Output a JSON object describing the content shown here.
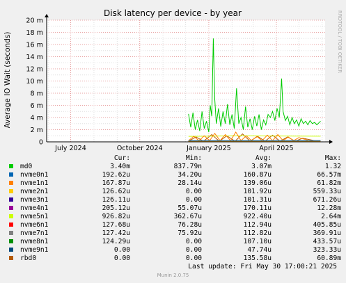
{
  "chart_data": {
    "type": "line",
    "title": "Disk latency per device - by year",
    "ylabel": "Average IO Wait (seconds)",
    "watermark": "RRDTOOL / TOBI OETIKER",
    "ylim": [
      0,
      0.02
    ],
    "yticks": [
      {
        "v": 0,
        "label": "0"
      },
      {
        "v": 0.002,
        "label": "2 m"
      },
      {
        "v": 0.004,
        "label": "4 m"
      },
      {
        "v": 0.006,
        "label": "6 m"
      },
      {
        "v": 0.008,
        "label": "8 m"
      },
      {
        "v": 0.01,
        "label": "10 m"
      },
      {
        "v": 0.012,
        "label": "12 m"
      },
      {
        "v": 0.014,
        "label": "14 m"
      },
      {
        "v": 0.016,
        "label": "16 m"
      },
      {
        "v": 0.018,
        "label": "18 m"
      },
      {
        "v": 0.02,
        "label": "20 m"
      }
    ],
    "xrange": [
      "2024-05-30",
      "2025-06-05"
    ],
    "xticks": [
      {
        "date": "2024-07-01",
        "label": "July 2024"
      },
      {
        "date": "2024-10-01",
        "label": "October 2024"
      },
      {
        "date": "2025-01-01",
        "label": "January 2025"
      },
      {
        "date": "2025-04-01",
        "label": "April 2025"
      }
    ],
    "data_start": "2024-12-05",
    "grid": true,
    "series": [
      {
        "name": "md0",
        "color": "#00cc00",
        "cur": "3.40m",
        "min": "837.79n",
        "avg": "3.07m",
        "max": "1.32",
        "values": [
          [
            "2024-12-05",
            0.0046
          ],
          [
            "2024-12-08",
            0.0024
          ],
          [
            "2024-12-11",
            0.0048
          ],
          [
            "2024-12-14",
            0.002
          ],
          [
            "2024-12-17",
            0.0036
          ],
          [
            "2024-12-20",
            0.0018
          ],
          [
            "2024-12-23",
            0.005
          ],
          [
            "2024-12-26",
            0.0022
          ],
          [
            "2024-12-29",
            0.0034
          ],
          [
            "2025-01-01",
            0.0016
          ],
          [
            "2025-01-03",
            0.006
          ],
          [
            "2025-01-05",
            0.0042
          ],
          [
            "2025-01-07",
            0.017
          ],
          [
            "2025-01-09",
            0.007
          ],
          [
            "2025-01-11",
            0.003
          ],
          [
            "2025-01-14",
            0.0055
          ],
          [
            "2025-01-17",
            0.0025
          ],
          [
            "2025-01-20",
            0.005
          ],
          [
            "2025-01-23",
            0.003
          ],
          [
            "2025-01-26",
            0.0062
          ],
          [
            "2025-01-29",
            0.0028
          ],
          [
            "2025-02-01",
            0.0045
          ],
          [
            "2025-02-04",
            0.0022
          ],
          [
            "2025-02-07",
            0.0088
          ],
          [
            "2025-02-10",
            0.003
          ],
          [
            "2025-02-13",
            0.004
          ],
          [
            "2025-02-16",
            0.002
          ],
          [
            "2025-02-19",
            0.0058
          ],
          [
            "2025-02-22",
            0.0024
          ],
          [
            "2025-02-25",
            0.0038
          ],
          [
            "2025-02-28",
            0.002
          ],
          [
            "2025-03-03",
            0.0042
          ],
          [
            "2025-03-06",
            0.0026
          ],
          [
            "2025-03-09",
            0.0045
          ],
          [
            "2025-03-12",
            0.002
          ],
          [
            "2025-03-15",
            0.0036
          ],
          [
            "2025-03-18",
            0.0028
          ],
          [
            "2025-03-21",
            0.0045
          ],
          [
            "2025-03-24",
            0.004
          ],
          [
            "2025-03-27",
            0.005
          ],
          [
            "2025-03-30",
            0.0035
          ],
          [
            "2025-04-02",
            0.0055
          ],
          [
            "2025-04-05",
            0.004
          ],
          [
            "2025-04-08",
            0.0104
          ],
          [
            "2025-04-10",
            0.005
          ],
          [
            "2025-04-13",
            0.0035
          ],
          [
            "2025-04-16",
            0.0042
          ],
          [
            "2025-04-19",
            0.0028
          ],
          [
            "2025-04-22",
            0.004
          ],
          [
            "2025-04-25",
            0.003
          ],
          [
            "2025-04-28",
            0.0036
          ],
          [
            "2025-05-01",
            0.0026
          ],
          [
            "2025-05-04",
            0.0038
          ],
          [
            "2025-05-07",
            0.003
          ],
          [
            "2025-05-10",
            0.0034
          ],
          [
            "2025-05-13",
            0.0028
          ],
          [
            "2025-05-16",
            0.0035
          ],
          [
            "2025-05-19",
            0.003
          ],
          [
            "2025-05-22",
            0.0032
          ],
          [
            "2025-05-25",
            0.0028
          ],
          [
            "2025-05-30",
            0.0034
          ]
        ]
      },
      {
        "name": "nvme0n1",
        "color": "#0066b3",
        "cur": "192.62u",
        "min": "34.20u",
        "avg": "160.87u",
        "max": "66.57m",
        "values": [
          [
            "2024-12-05",
            0.00019
          ],
          [
            "2025-05-30",
            0.00019
          ]
        ]
      },
      {
        "name": "nvme1n1",
        "color": "#ff8000",
        "cur": "167.87u",
        "min": "28.14u",
        "avg": "139.06u",
        "max": "61.82m",
        "values": [
          [
            "2024-12-05",
            0.0002
          ],
          [
            "2024-12-12",
            0.0009
          ],
          [
            "2024-12-19",
            0.0002
          ],
          [
            "2024-12-26",
            0.001
          ],
          [
            "2025-01-02",
            0.0002
          ],
          [
            "2025-01-09",
            0.0014
          ],
          [
            "2025-01-16",
            0.0002
          ],
          [
            "2025-01-23",
            0.0012
          ],
          [
            "2025-01-30",
            0.0002
          ],
          [
            "2025-02-06",
            0.0016
          ],
          [
            "2025-02-13",
            0.0002
          ],
          [
            "2025-02-20",
            0.001
          ],
          [
            "2025-02-27",
            0.0002
          ],
          [
            "2025-03-06",
            0.0009
          ],
          [
            "2025-03-13",
            0.0002
          ],
          [
            "2025-03-20",
            0.0011
          ],
          [
            "2025-03-27",
            0.0002
          ],
          [
            "2025-04-03",
            0.0012
          ],
          [
            "2025-04-10",
            0.0002
          ],
          [
            "2025-04-17",
            0.0008
          ],
          [
            "2025-04-24",
            0.0002
          ],
          [
            "2025-05-01",
            0.0007
          ],
          [
            "2025-05-15",
            0.0002
          ],
          [
            "2025-05-30",
            0.0002
          ]
        ]
      },
      {
        "name": "nvme2n1",
        "color": "#ffcc00",
        "cur": "126.62u",
        "min": "0.00",
        "avg": "101.92u",
        "max": "559.33u",
        "values": [
          [
            "2024-12-05",
            0.00013
          ],
          [
            "2025-05-30",
            0.00013
          ]
        ]
      },
      {
        "name": "nvme3n1",
        "color": "#330099",
        "cur": "126.11u",
        "min": "0.00",
        "avg": "101.31u",
        "max": "671.26u",
        "values": [
          [
            "2024-12-05",
            0.00013
          ],
          [
            "2025-05-30",
            0.00013
          ]
        ]
      },
      {
        "name": "nvme4n1",
        "color": "#990099",
        "cur": "205.12u",
        "min": "55.07u",
        "avg": "170.11u",
        "max": "12.28m",
        "values": [
          [
            "2024-12-05",
            0.0002
          ],
          [
            "2025-05-30",
            0.0002
          ]
        ]
      },
      {
        "name": "nvme5n1",
        "color": "#ccff00",
        "cur": "926.82u",
        "min": "362.67u",
        "avg": "922.40u",
        "max": "2.64m",
        "values": [
          [
            "2024-12-05",
            0.0009
          ],
          [
            "2025-02-15",
            0.001
          ],
          [
            "2025-05-30",
            0.00093
          ]
        ]
      },
      {
        "name": "nvme6n1",
        "color": "#ff0000",
        "cur": "127.68u",
        "min": "76.28u",
        "avg": "112.94u",
        "max": "405.85u",
        "values": [
          [
            "2024-12-05",
            0.00013
          ],
          [
            "2025-05-30",
            0.00013
          ]
        ]
      },
      {
        "name": "nvme7n1",
        "color": "#808080",
        "cur": "127.42u",
        "min": "75.92u",
        "avg": "112.82u",
        "max": "369.91u",
        "values": [
          [
            "2024-12-05",
            0.00013
          ],
          [
            "2025-05-30",
            0.00013
          ]
        ]
      },
      {
        "name": "nvme8n1",
        "color": "#008f00",
        "cur": "124.29u",
        "min": "0.00",
        "avg": "107.10u",
        "max": "433.57u",
        "values": [
          [
            "2024-12-05",
            0.00012
          ],
          [
            "2025-05-30",
            0.00012
          ]
        ]
      },
      {
        "name": "nvme9n1",
        "color": "#00487d",
        "cur": "0.00",
        "min": "0.00",
        "avg": "47.74u",
        "max": "323.33u",
        "values": [
          [
            "2024-12-05",
            5e-05
          ],
          [
            "2025-05-30",
            0.0
          ]
        ]
      },
      {
        "name": "rbd0",
        "color": "#b35a00",
        "cur": "0.00",
        "min": "0.00",
        "avg": "135.58u",
        "max": "60.89m",
        "values": [
          [
            "2024-12-05",
            0.0001
          ],
          [
            "2024-12-15",
            0.0008
          ],
          [
            "2024-12-25",
            0.0001
          ],
          [
            "2025-01-05",
            0.0012
          ],
          [
            "2025-01-15",
            0.0001
          ],
          [
            "2025-01-25",
            0.001
          ],
          [
            "2025-02-05",
            0.0001
          ],
          [
            "2025-02-15",
            0.0013
          ],
          [
            "2025-02-25",
            0.0001
          ],
          [
            "2025-03-07",
            0.0009
          ],
          [
            "2025-03-17",
            0.0001
          ],
          [
            "2025-03-27",
            0.0011
          ],
          [
            "2025-04-06",
            0.0001
          ],
          [
            "2025-04-16",
            0.0008
          ],
          [
            "2025-04-26",
            0.0001
          ],
          [
            "2025-05-06",
            0.0006
          ],
          [
            "2025-05-30",
            0.0
          ]
        ]
      }
    ]
  },
  "legend_headers": {
    "cur": "Cur:",
    "min": "Min:",
    "avg": "Avg:",
    "max": "Max:"
  },
  "last_update": "Last update: Fri May 30 17:00:21 2025",
  "munin_version": "Munin 2.0.75"
}
